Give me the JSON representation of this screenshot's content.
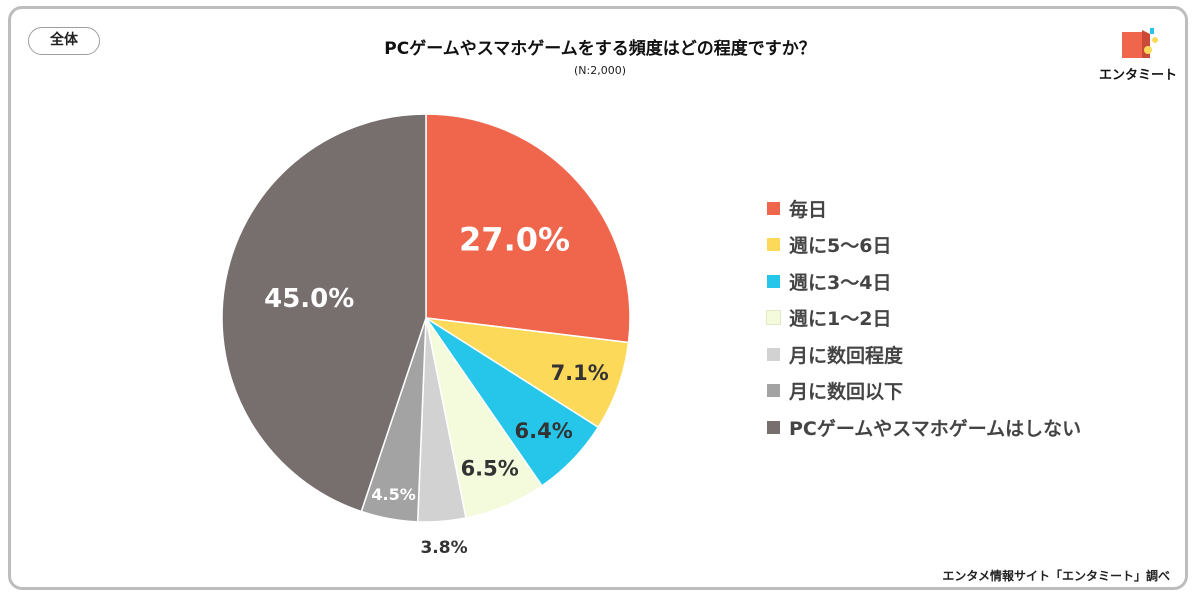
{
  "segment_tag": "全体",
  "logo": {
    "text": "エンタミート",
    "icon": "entameet-logo-icon"
  },
  "source": "エンタメ情報サイト「エンタミート」調べ",
  "chart_data": {
    "type": "pie",
    "title": "PCゲームやスマホゲームをする頻度はどの程度ですか？",
    "subtitle": "(N:2,000)",
    "start_angle": "12 o'clock",
    "direction": "clockwise",
    "legend_position": "right",
    "slices": [
      {
        "label": "毎日",
        "value": 27.0,
        "display": "27.0%",
        "color": "#ef664d",
        "label_color": "#ffffff"
      },
      {
        "label": "週に5〜6日",
        "value": 7.1,
        "display": "7.1%",
        "color": "#fdd95a",
        "label_color": "#333333"
      },
      {
        "label": "週に3〜4日",
        "value": 6.4,
        "display": "6.4%",
        "color": "#26c6ea",
        "label_color": "#333333"
      },
      {
        "label": "週に1〜2日",
        "value": 6.5,
        "display": "6.5%",
        "color": "#f4fbdc",
        "label_color": "#333333"
      },
      {
        "label": "月に数回程度",
        "value": 3.8,
        "display": "3.8%",
        "color": "#d2d2d2",
        "label_color": "#333333"
      },
      {
        "label": "月に数回以下",
        "value": 4.5,
        "display": "4.5%",
        "color": "#a3a3a3",
        "label_color": "#ffffff"
      },
      {
        "label": "PCゲームやスマホゲームはしない",
        "value": 45.0,
        "display": "45.0%",
        "color": "#766f6e",
        "label_color": "#ffffff"
      }
    ]
  }
}
